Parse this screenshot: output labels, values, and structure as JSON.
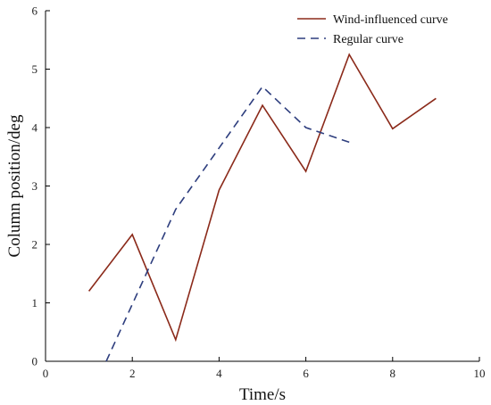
{
  "chart_data": {
    "type": "line",
    "xlabel": "Time/s",
    "ylabel": "Column position/deg",
    "xlim": [
      0,
      10
    ],
    "ylim": [
      0,
      6
    ],
    "x_ticks": [
      "0",
      "2",
      "4",
      "6",
      "8",
      "10"
    ],
    "y_ticks": [
      "0",
      "1",
      "2",
      "3",
      "4",
      "5",
      "6"
    ],
    "grid": false,
    "legend_position": "top-right",
    "series": [
      {
        "name": "Wind-influenced curve",
        "color": "#8b2a1a",
        "dash": "solid",
        "x": [
          1,
          2,
          3,
          4,
          5,
          6,
          7,
          8,
          9
        ],
        "y": [
          1.2,
          2.17,
          0.37,
          2.93,
          4.38,
          3.25,
          5.25,
          3.98,
          4.5
        ]
      },
      {
        "name": "Regular curve",
        "color": "#2e3e7e",
        "dash": "dashed",
        "x": [
          1.4,
          3,
          5,
          6,
          7
        ],
        "y": [
          0,
          2.6,
          4.7,
          4.0,
          3.75
        ]
      }
    ]
  }
}
